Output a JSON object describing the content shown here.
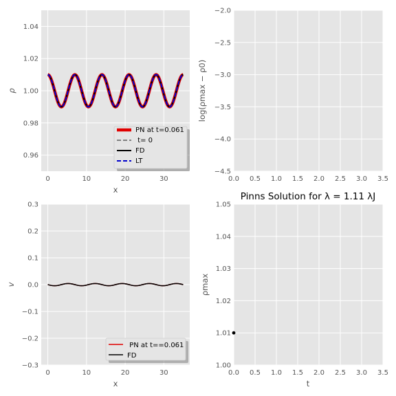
{
  "chart_data": [
    {
      "type": "line",
      "xlabel": "x",
      "ylabel": "ρ",
      "xlim": [
        -1.7,
        36.7
      ],
      "ylim": [
        0.95,
        1.05
      ],
      "xticks": [
        0,
        10,
        20,
        30
      ],
      "yticks": [
        0.96,
        0.98,
        1.0,
        1.02,
        1.04
      ],
      "ytick_labels": [
        "0.96",
        "0.98",
        "1.00",
        "1.02",
        "1.04"
      ],
      "grid": true,
      "legend_position": "lower-right",
      "x": [
        0.0,
        1.8,
        3.5,
        5.3,
        7.0,
        8.8,
        10.5,
        12.3,
        14.0,
        15.8,
        17.5,
        19.3,
        21.0,
        22.8,
        24.5,
        26.3,
        28.0,
        29.8,
        31.5,
        33.3,
        35.0
      ],
      "series": [
        {
          "name": "PN at t=0.061",
          "color": "#e00000",
          "style": "solid",
          "y": [
            1.01,
            1.0,
            0.99,
            1.0,
            1.01,
            1.0,
            0.99,
            1.0,
            1.01,
            1.0,
            0.99,
            1.0,
            1.01,
            1.0,
            0.99,
            1.0,
            1.01,
            1.0,
            0.99,
            1.0,
            1.01
          ]
        },
        {
          "name": " t= 0",
          "color": "#808080",
          "style": "dashed",
          "y": [
            1.01,
            1.0,
            0.99,
            1.0,
            1.01,
            1.0,
            0.99,
            1.0,
            1.01,
            1.0,
            0.99,
            1.0,
            1.01,
            1.0,
            0.99,
            1.0,
            1.01,
            1.0,
            0.99,
            1.0,
            1.01
          ]
        },
        {
          "name": "FD",
          "color": "#000000",
          "style": "solid",
          "y": [
            1.01,
            1.0,
            0.99,
            1.0,
            1.01,
            1.0,
            0.99,
            1.0,
            1.01,
            1.0,
            0.99,
            1.0,
            1.01,
            1.0,
            0.99,
            1.0,
            1.01,
            1.0,
            0.99,
            1.0,
            1.01
          ]
        },
        {
          "name": "LT",
          "color": "#0000cc",
          "style": "dashed",
          "y": [
            1.01,
            1.0,
            0.99,
            1.0,
            1.01,
            1.0,
            0.99,
            1.0,
            1.01,
            1.0,
            0.99,
            1.0,
            1.01,
            1.0,
            0.99,
            1.0,
            1.01,
            1.0,
            0.99,
            1.0,
            1.01
          ]
        }
      ]
    },
    {
      "type": "line",
      "xlabel": "",
      "ylabel": "log(ρmax − ρ0)",
      "xlim": [
        0.0,
        3.5
      ],
      "ylim": [
        -4.5,
        -2.0
      ],
      "xticks": [
        0.0,
        0.5,
        1.0,
        1.5,
        2.0,
        2.5,
        3.0,
        3.5
      ],
      "xtick_labels": [
        "0.0",
        "0.5",
        "1.0",
        "1.5",
        "2.0",
        "2.5",
        "3.0",
        "3.5"
      ],
      "yticks": [
        -4.5,
        -4.0,
        -3.5,
        -3.0,
        -2.5,
        -2.0
      ],
      "ytick_labels": [
        "−4.5",
        "−4.0",
        "−3.5",
        "−3.0",
        "−2.5",
        "−2.0"
      ],
      "grid": true,
      "series": []
    },
    {
      "type": "line",
      "xlabel": "x",
      "ylabel": "v",
      "xlim": [
        -1.7,
        36.7
      ],
      "ylim": [
        -0.3,
        0.3
      ],
      "xticks": [
        0,
        10,
        20,
        30
      ],
      "yticks": [
        -0.3,
        -0.2,
        -0.1,
        0.0,
        0.1,
        0.2,
        0.3
      ],
      "ytick_labels": [
        "−0.3",
        "−0.2",
        "−0.1",
        "0.0",
        "0.1",
        "0.2",
        "0.3"
      ],
      "grid": true,
      "legend_position": "lower-right",
      "x": [
        0.0,
        1.8,
        3.5,
        5.3,
        7.0,
        8.8,
        10.5,
        12.3,
        14.0,
        15.8,
        17.5,
        19.3,
        21.0,
        22.8,
        24.5,
        26.3,
        28.0,
        29.8,
        31.5,
        33.3,
        35.0
      ],
      "series": [
        {
          "name": " PN at t==0.061",
          "color": "#e00000",
          "style": "solid",
          "y": [
            0.0,
            -0.004,
            0.0,
            0.004,
            0.0,
            -0.004,
            0.0,
            0.004,
            0.0,
            -0.004,
            0.0,
            0.004,
            0.0,
            -0.004,
            0.0,
            0.004,
            0.0,
            -0.004,
            0.0,
            0.004,
            0.0
          ]
        },
        {
          "name": "FD",
          "color": "#000000",
          "style": "solid",
          "y": [
            0.0,
            -0.004,
            0.0,
            0.004,
            0.0,
            -0.004,
            0.0,
            0.004,
            0.0,
            -0.004,
            0.0,
            0.004,
            0.0,
            -0.004,
            0.0,
            0.004,
            0.0,
            -0.004,
            0.0,
            0.004,
            0.0
          ]
        }
      ]
    },
    {
      "type": "scatter",
      "title": "Pinns Solution for λ = 1.11 λJ",
      "xlabel": "t",
      "ylabel": "ρmax",
      "xlim": [
        0.0,
        3.5
      ],
      "ylim": [
        1.0,
        1.05
      ],
      "xticks": [
        0.0,
        0.5,
        1.0,
        1.5,
        2.0,
        2.5,
        3.0,
        3.5
      ],
      "xtick_labels": [
        "0.0",
        "0.5",
        "1.0",
        "1.5",
        "2.0",
        "2.5",
        "3.0",
        "3.5"
      ],
      "yticks": [
        1.0,
        1.01,
        1.02,
        1.03,
        1.04,
        1.05
      ],
      "ytick_labels": [
        "1.00",
        "1.01",
        "1.02",
        "1.03",
        "1.04",
        "1.05"
      ],
      "grid": true,
      "points": [
        {
          "x": 0.0,
          "y": 1.01
        }
      ]
    }
  ]
}
